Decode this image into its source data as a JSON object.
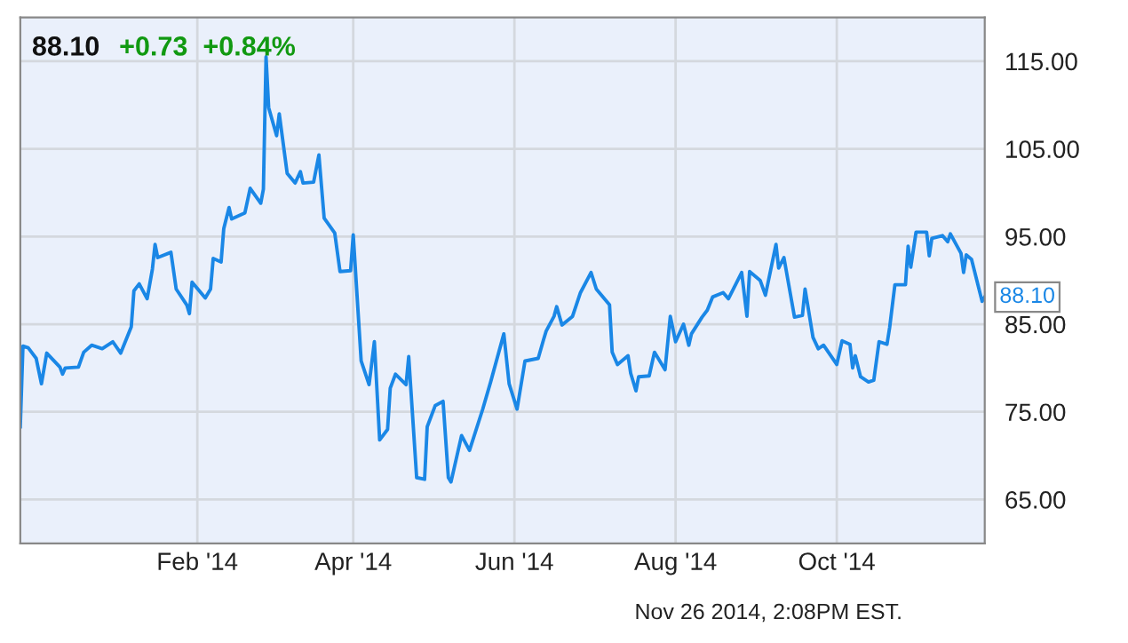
{
  "chart_data": {
    "type": "line",
    "title": "88.10",
    "subtitle": "+0.73  +0.84%",
    "x": [
      "2013-11-26",
      "2013-11-27",
      "2013-11-29",
      "2013-12-02",
      "2013-12-04",
      "2013-12-06",
      "2013-12-11",
      "2013-12-12",
      "2013-12-13",
      "2013-12-18",
      "2013-12-20",
      "2013-12-23",
      "2013-12-27",
      "2013-12-31",
      "2014-01-03",
      "2014-01-07",
      "2014-01-08",
      "2014-01-10",
      "2014-01-13",
      "2014-01-15",
      "2014-01-16",
      "2014-01-17",
      "2014-01-22",
      "2014-01-24",
      "2014-01-28",
      "2014-01-29",
      "2014-01-30",
      "2014-02-04",
      "2014-02-06",
      "2014-02-07",
      "2014-02-10",
      "2014-02-11",
      "2014-02-13",
      "2014-02-14",
      "2014-02-19",
      "2014-02-21",
      "2014-02-25",
      "2014-02-26",
      "2014-02-27",
      "2014-02-28",
      "2014-03-03",
      "2014-03-04",
      "2014-03-07",
      "2014-03-10",
      "2014-03-12",
      "2014-03-13",
      "2014-03-17",
      "2014-03-19",
      "2014-03-21",
      "2014-03-25",
      "2014-03-27",
      "2014-03-31",
      "2014-04-01",
      "2014-04-04",
      "2014-04-07",
      "2014-04-09",
      "2014-04-11",
      "2014-04-14",
      "2014-04-15",
      "2014-04-17",
      "2014-04-21",
      "2014-04-22",
      "2014-04-25",
      "2014-04-28",
      "2014-04-29",
      "2014-05-02",
      "2014-05-05",
      "2014-05-07",
      "2014-05-08",
      "2014-05-12",
      "2014-05-15",
      "2014-05-20",
      "2014-05-23",
      "2014-05-28",
      "2014-05-30",
      "2014-06-02",
      "2014-06-05",
      "2014-06-10",
      "2014-06-12",
      "2014-06-13",
      "2014-06-16",
      "2014-06-17",
      "2014-06-19",
      "2014-06-23",
      "2014-06-26",
      "2014-06-30",
      "2014-07-02",
      "2014-07-07",
      "2014-07-08",
      "2014-07-10",
      "2014-07-14",
      "2014-07-15",
      "2014-07-17",
      "2014-07-18",
      "2014-07-22",
      "2014-07-24",
      "2014-07-28",
      "2014-07-30",
      "2014-08-01",
      "2014-08-04",
      "2014-08-06",
      "2014-08-07",
      "2014-08-11",
      "2014-08-13",
      "2014-08-15",
      "2014-08-19",
      "2014-08-21",
      "2014-08-26",
      "2014-08-28",
      "2014-08-29",
      "2014-09-02",
      "2014-09-04",
      "2014-09-08",
      "2014-09-09",
      "2014-09-11",
      "2014-09-15",
      "2014-09-18",
      "2014-09-19",
      "2014-09-22",
      "2014-09-24",
      "2014-09-26",
      "2014-10-01",
      "2014-10-03",
      "2014-10-06",
      "2014-10-07",
      "2014-10-08",
      "2014-10-10",
      "2014-10-13",
      "2014-10-15",
      "2014-10-17",
      "2014-10-20",
      "2014-10-21",
      "2014-10-23",
      "2014-10-27",
      "2014-10-28",
      "2014-10-29",
      "2014-10-31",
      "2014-11-04",
      "2014-11-05",
      "2014-11-06",
      "2014-11-10",
      "2014-11-12",
      "2014-11-13",
      "2014-11-17",
      "2014-11-18",
      "2014-11-19",
      "2014-11-21",
      "2014-11-25",
      "2014-11-26"
    ],
    "series": [
      {
        "color": "#1a87e6",
        "values": [
          73.3,
          82.5,
          82.3,
          81.1,
          78.2,
          81.7,
          80.1,
          79.3,
          80.0,
          80.1,
          81.8,
          82.6,
          82.2,
          83.0,
          81.7,
          84.7,
          88.8,
          89.6,
          87.9,
          91.3,
          94.1,
          92.6,
          93.2,
          89.0,
          87.2,
          86.2,
          89.8,
          88.0,
          89.0,
          92.5,
          92.1,
          95.9,
          98.3,
          97.0,
          97.7,
          100.5,
          98.8,
          100.4,
          115.5,
          109.7,
          106.5,
          109.0,
          102.2,
          101.1,
          102.4,
          101.1,
          101.2,
          104.3,
          97.1,
          95.4,
          91.0,
          91.1,
          95.2,
          80.8,
          78.1,
          83.0,
          71.8,
          73.0,
          77.7,
          79.3,
          78.1,
          81.3,
          67.5,
          67.3,
          73.3,
          75.7,
          76.2,
          67.5,
          67.0,
          72.3,
          70.6,
          75.3,
          78.4,
          83.9,
          78.2,
          75.3,
          80.8,
          81.1,
          83.2,
          84.2,
          85.9,
          87.0,
          84.9,
          85.9,
          88.6,
          90.9,
          89.0,
          87.2,
          81.8,
          80.4,
          81.4,
          79.4,
          77.4,
          79.0,
          79.1,
          81.8,
          79.8,
          85.9,
          83.0,
          85.0,
          82.6,
          83.9,
          85.8,
          86.6,
          88.1,
          88.6,
          87.9,
          90.9,
          85.9,
          91.0,
          90.0,
          88.3,
          94.1,
          91.4,
          92.6,
          85.8,
          86.0,
          89.0,
          83.5,
          82.2,
          82.6,
          80.4,
          83.1,
          82.7,
          80.0,
          81.4,
          79.0,
          78.4,
          78.6,
          83.0,
          82.7,
          84.6,
          89.5,
          89.5,
          93.9,
          91.5,
          95.5,
          95.5,
          92.8,
          94.8,
          95.1,
          94.4,
          95.3,
          93.1,
          90.9,
          92.9,
          92.4,
          87.6,
          88.1
        ]
      }
    ],
    "xlim": [
      "2013-11-26",
      "2014-11-26"
    ],
    "xticks": [
      {
        "value": "2014-02-01",
        "label": "Feb '14"
      },
      {
        "value": "2014-04-01",
        "label": "Apr '14"
      },
      {
        "value": "2014-06-01",
        "label": "Jun '14"
      },
      {
        "value": "2014-08-01",
        "label": "Aug '14"
      },
      {
        "value": "2014-10-01",
        "label": "Oct '14"
      }
    ],
    "ylim": [
      60,
      120
    ],
    "yticks": [
      {
        "value": 65,
        "label": "65.00"
      },
      {
        "value": 75,
        "label": "75.00"
      },
      {
        "value": 85,
        "label": "85.00"
      },
      {
        "value": 95,
        "label": "95.00"
      },
      {
        "value": 105,
        "label": "105.00"
      },
      {
        "value": 115,
        "label": "115.00"
      }
    ],
    "grid": true,
    "annotations": [
      {
        "text": "88.10",
        "x": "2014-11-26",
        "y": 88.1
      },
      "Nov 26 2014, 2:08PM EST."
    ]
  }
}
